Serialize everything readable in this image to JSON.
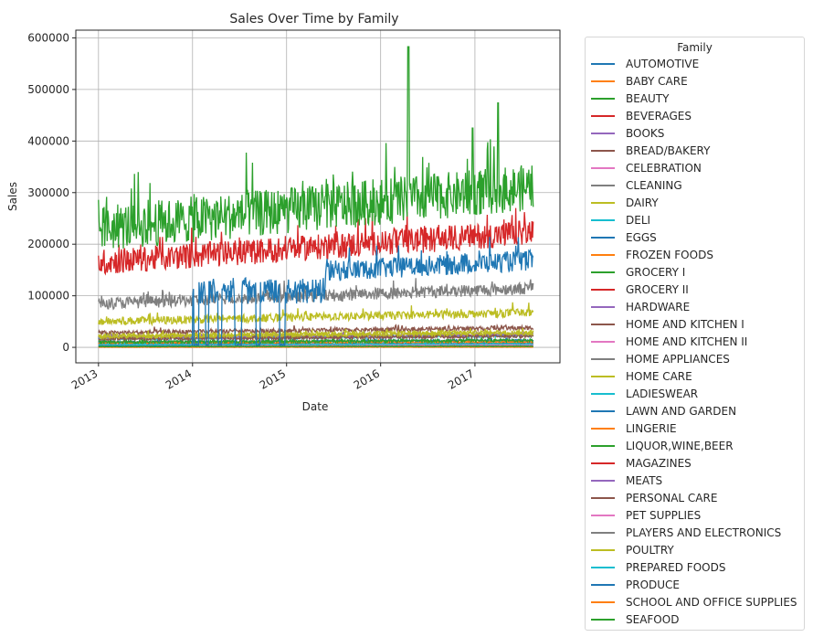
{
  "chart_data": {
    "type": "line",
    "title": "Sales Over Time by Family",
    "xlabel": "Date",
    "ylabel": "Sales",
    "xlim": [
      "2012-10-05",
      "2017-11-27"
    ],
    "ylim": [
      -30000,
      615000
    ],
    "x_ticks": [
      "2013",
      "2014",
      "2015",
      "2016",
      "2017"
    ],
    "y_ticks": [
      0,
      100000,
      200000,
      300000,
      400000,
      500000,
      600000
    ],
    "y_tick_labels": [
      "0",
      "100000",
      "200000",
      "300000",
      "400000",
      "500000",
      "600000"
    ],
    "grid": true,
    "legend": {
      "title": "Family",
      "placement": "outside-right"
    },
    "series_colors": [
      "#1f77b4",
      "#ff7f0e",
      "#2ca02c",
      "#d62728",
      "#9467bd",
      "#8c564b",
      "#e377c2",
      "#7f7f7f",
      "#bcbd22",
      "#17becf"
    ],
    "series": [
      {
        "name": "AUTOMOTIVE",
        "level": 6000,
        "noise": 1500
      },
      {
        "name": "BABY CARE",
        "level": 200,
        "noise": 100
      },
      {
        "name": "BEAUTY",
        "level": 4000,
        "noise": 1000
      },
      {
        "name": "BEVERAGES",
        "level": 165000,
        "noise": 25000
      },
      {
        "name": "BOOKS",
        "level": 150,
        "noise": 80
      },
      {
        "name": "BREAD/BAKERY",
        "level": 28000,
        "noise": 4000
      },
      {
        "name": "CELEBRATION",
        "level": 3000,
        "noise": 800
      },
      {
        "name": "CLEANING",
        "level": 85000,
        "noise": 12000
      },
      {
        "name": "DAIRY",
        "level": 50000,
        "noise": 8000
      },
      {
        "name": "DELI",
        "level": 17000,
        "noise": 3000
      },
      {
        "name": "EGGS",
        "level": 10000,
        "noise": 2000
      },
      {
        "name": "FROZEN FOODS",
        "level": 8000,
        "noise": 2000
      },
      {
        "name": "GROCERY I",
        "level": 230000,
        "noise": 45000
      },
      {
        "name": "GROCERY II",
        "level": 1500,
        "noise": 500
      },
      {
        "name": "HARDWARE",
        "level": 800,
        "noise": 300
      },
      {
        "name": "HOME AND KITCHEN I",
        "level": 5000,
        "noise": 1500
      },
      {
        "name": "HOME AND KITCHEN II",
        "level": 4000,
        "noise": 1200
      },
      {
        "name": "HOME APPLIANCES",
        "level": 300,
        "noise": 150
      },
      {
        "name": "HOME CARE",
        "level": 22000,
        "noise": 4000
      },
      {
        "name": "LADIESWEAR",
        "level": 1200,
        "noise": 400
      },
      {
        "name": "LAWN AND GARDEN",
        "level": 1500,
        "noise": 500
      },
      {
        "name": "LINGERIE",
        "level": 1000,
        "noise": 300
      },
      {
        "name": "LIQUOR,WINE,BEER",
        "level": 10000,
        "noise": 3000
      },
      {
        "name": "MAGAZINES",
        "level": 500,
        "noise": 200
      },
      {
        "name": "MEATS",
        "level": 18000,
        "noise": 3000
      },
      {
        "name": "PERSONAL CARE",
        "level": 16000,
        "noise": 3000
      },
      {
        "name": "PET SUPPLIES",
        "level": 600,
        "noise": 200
      },
      {
        "name": "PLAYERS AND ELECTRONICS",
        "level": 1000,
        "noise": 300
      },
      {
        "name": "POULTRY",
        "level": 20000,
        "noise": 3000
      },
      {
        "name": "PREPARED FOODS",
        "level": 5000,
        "noise": 1000
      },
      {
        "name": "PRODUCE",
        "level": 125000,
        "noise": 20000
      },
      {
        "name": "SCHOOL AND OFFICE SUPPLIES",
        "level": 300,
        "noise": 400
      },
      {
        "name": "SEAFOOD",
        "level": 1500,
        "noise": 400
      }
    ],
    "annotations_peaks": [
      {
        "series": "GROCERY I",
        "x": "2016-04-18",
        "y": 583000
      },
      {
        "series": "GROCERY I",
        "x": "2017-04-01",
        "y": 474000
      },
      {
        "series": "GROCERY I",
        "x": "2016-12-23",
        "y": 425000
      }
    ]
  }
}
